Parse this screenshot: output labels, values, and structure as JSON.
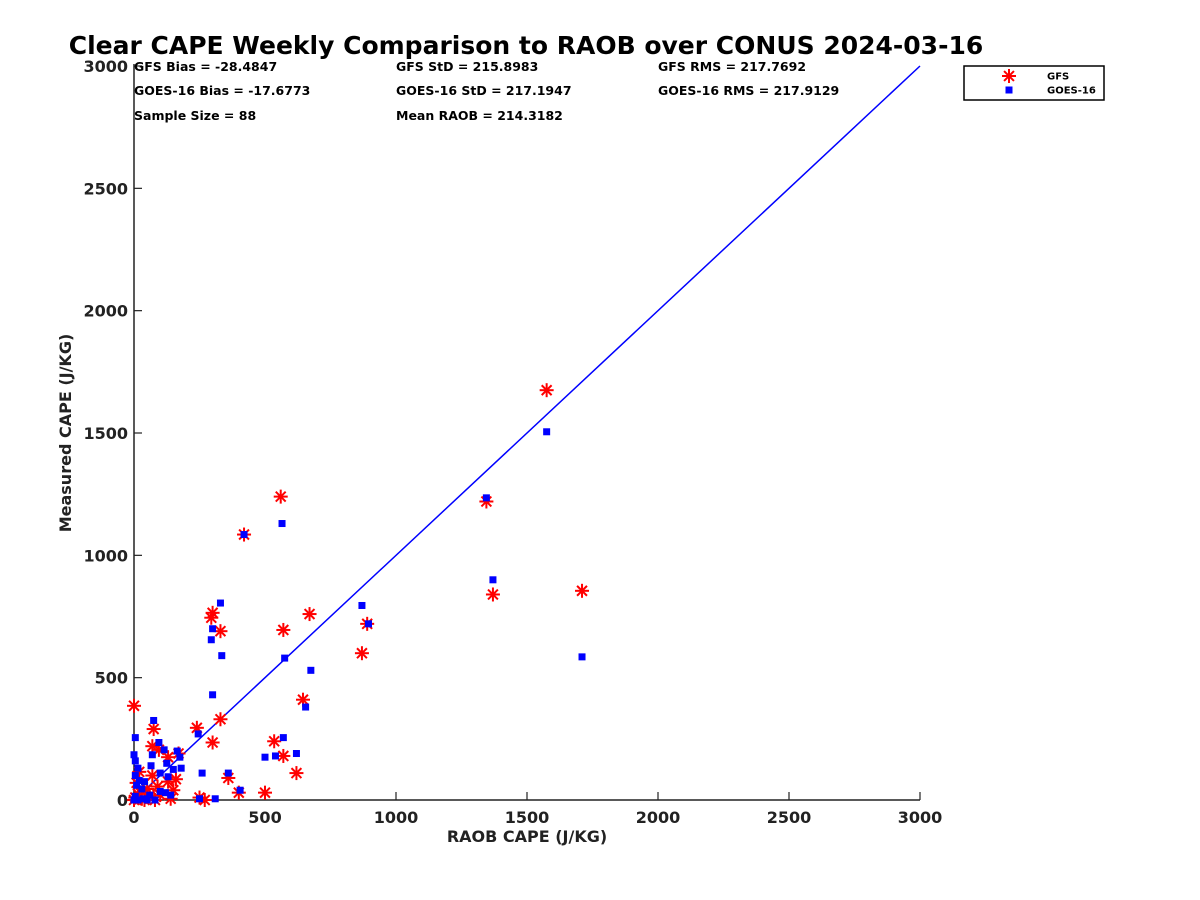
{
  "chart_data": {
    "type": "scatter",
    "title": "Clear CAPE Weekly Comparison to RAOB over CONUS 2024-03-16",
    "xlabel": "RAOB CAPE (J/KG)",
    "ylabel": "Measured CAPE (J/KG)",
    "xlim": [
      0,
      3000
    ],
    "ylim": [
      0,
      3000
    ],
    "xticks": [
      "0",
      "500",
      "1000",
      "1500",
      "2000",
      "2500",
      "3000"
    ],
    "yticks": [
      "0",
      "500",
      "1000",
      "1500",
      "2000",
      "2500",
      "3000"
    ],
    "grid": false,
    "legend_position": "top-right",
    "stats": [
      [
        "GFS Bias = -28.4847",
        "GFS StD = 215.8983",
        "GFS RMS = 217.7692"
      ],
      [
        "GOES-16 Bias = -17.6773",
        "GOES-16 StD = 217.1947",
        "GOES-16 RMS = 217.9129"
      ],
      [
        "Sample Size = 88",
        "Mean RAOB = 214.3182",
        ""
      ]
    ],
    "reference_line": {
      "from": [
        0,
        0
      ],
      "to": [
        3000,
        3000
      ],
      "color": "#0000ff"
    },
    "series": [
      {
        "name": "GFS",
        "marker": "asterisk",
        "color": "#ff0000",
        "points": [
          [
            1575,
            1675
          ],
          [
            560,
            1240
          ],
          [
            1345,
            1220
          ],
          [
            420,
            1085
          ],
          [
            1710,
            855
          ],
          [
            1370,
            840
          ],
          [
            670,
            760
          ],
          [
            300,
            765
          ],
          [
            295,
            745
          ],
          [
            570,
            695
          ],
          [
            330,
            690
          ],
          [
            890,
            720
          ],
          [
            870,
            600
          ],
          [
            645,
            410
          ],
          [
            330,
            330
          ],
          [
            0,
            385
          ],
          [
            240,
            295
          ],
          [
            75,
            290
          ],
          [
            300,
            235
          ],
          [
            535,
            240
          ],
          [
            70,
            220
          ],
          [
            95,
            205
          ],
          [
            570,
            180
          ],
          [
            170,
            190
          ],
          [
            130,
            175
          ],
          [
            620,
            110
          ],
          [
            20,
            115
          ],
          [
            70,
            100
          ],
          [
            360,
            90
          ],
          [
            160,
            85
          ],
          [
            130,
            75
          ],
          [
            10,
            70
          ],
          [
            90,
            55
          ],
          [
            50,
            45
          ],
          [
            150,
            40
          ],
          [
            400,
            30
          ],
          [
            500,
            30
          ],
          [
            250,
            10
          ],
          [
            140,
            5
          ],
          [
            30,
            5
          ],
          [
            60,
            15
          ],
          [
            100,
            20
          ],
          [
            0,
            0
          ],
          [
            15,
            25
          ],
          [
            80,
            0
          ],
          [
            5,
            10
          ],
          [
            40,
            0
          ],
          [
            270,
            0
          ]
        ]
      },
      {
        "name": "GOES-16",
        "marker": "square",
        "color": "#0000ff",
        "points": [
          [
            1575,
            1505
          ],
          [
            1345,
            1235
          ],
          [
            565,
            1130
          ],
          [
            420,
            1085
          ],
          [
            1370,
            900
          ],
          [
            330,
            805
          ],
          [
            870,
            795
          ],
          [
            895,
            720
          ],
          [
            300,
            700
          ],
          [
            295,
            655
          ],
          [
            335,
            590
          ],
          [
            1710,
            585
          ],
          [
            575,
            580
          ],
          [
            675,
            530
          ],
          [
            300,
            430
          ],
          [
            655,
            380
          ],
          [
            75,
            325
          ],
          [
            245,
            270
          ],
          [
            570,
            255
          ],
          [
            5,
            255
          ],
          [
            95,
            235
          ],
          [
            115,
            205
          ],
          [
            0,
            185
          ],
          [
            165,
            200
          ],
          [
            620,
            190
          ],
          [
            70,
            185
          ],
          [
            175,
            175
          ],
          [
            540,
            180
          ],
          [
            500,
            175
          ],
          [
            5,
            160
          ],
          [
            125,
            150
          ],
          [
            65,
            140
          ],
          [
            180,
            130
          ],
          [
            15,
            130
          ],
          [
            150,
            125
          ],
          [
            360,
            110
          ],
          [
            260,
            110
          ],
          [
            100,
            110
          ],
          [
            5,
            100
          ],
          [
            130,
            95
          ],
          [
            20,
            80
          ],
          [
            40,
            75
          ],
          [
            10,
            60
          ],
          [
            405,
            40
          ],
          [
            100,
            35
          ],
          [
            30,
            45
          ],
          [
            120,
            30
          ],
          [
            60,
            20
          ],
          [
            140,
            20
          ],
          [
            310,
            5
          ],
          [
            250,
            5
          ],
          [
            5,
            15
          ],
          [
            35,
            5
          ],
          [
            0,
            0
          ],
          [
            50,
            0
          ],
          [
            80,
            0
          ],
          [
            15,
            0
          ]
        ]
      }
    ]
  }
}
